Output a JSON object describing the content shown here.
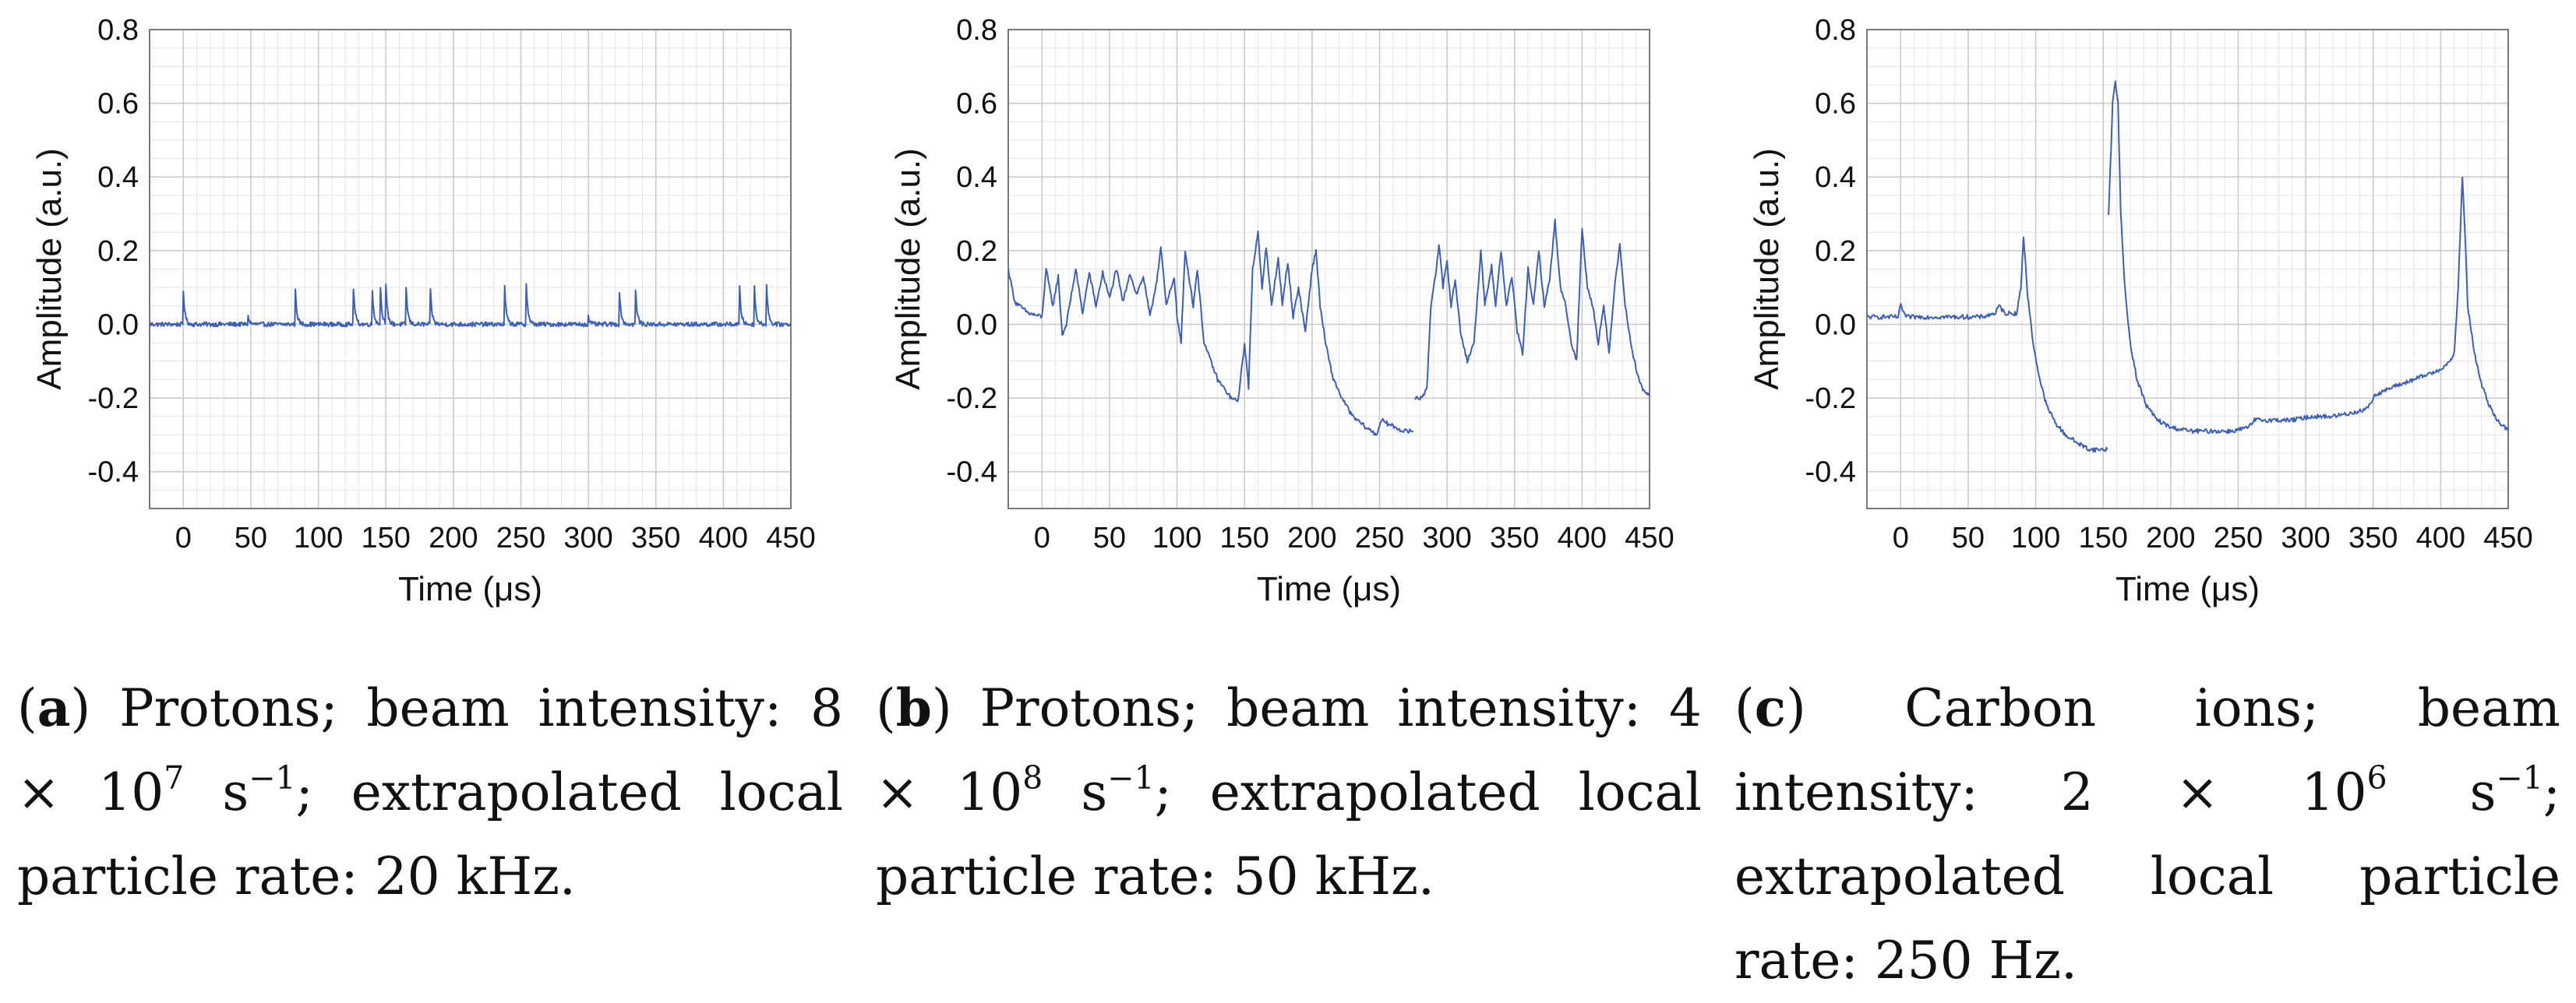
{
  "colors": {
    "series": "#3f5fb0",
    "grid": "#c8c8c8",
    "frame": "#7a7a7a",
    "text": "#111111"
  },
  "chart_data": [
    {
      "type": "line",
      "panel_label": "a",
      "xlabel": "Time (μs)",
      "ylabel": "Amplitude (a.u.)",
      "xlim": [
        -25,
        450
      ],
      "ylim": [
        -0.5,
        0.8
      ],
      "xticks": [
        0,
        50,
        100,
        150,
        200,
        250,
        300,
        350,
        400,
        450
      ],
      "xtick_labels": [
        "0",
        "50",
        "100",
        "150",
        "200",
        "250",
        "300",
        "350",
        "400",
        "450"
      ],
      "yticks": [
        -0.4,
        -0.2,
        0.0,
        0.2,
        0.4,
        0.6,
        0.8
      ],
      "ytick_labels": [
        "-0.4",
        "-0.2",
        "0.0",
        "0.2",
        "0.4",
        "0.6",
        "0.8"
      ],
      "grid": true,
      "baseline": 0.0,
      "segments": [],
      "peaks": [
        {
          "t": 0,
          "a": 0.09
        },
        {
          "t": 48,
          "a": 0.02
        },
        {
          "t": 83,
          "a": 0.09
        },
        {
          "t": 126,
          "a": 0.1
        },
        {
          "t": 140,
          "a": 0.09
        },
        {
          "t": 146,
          "a": 0.1
        },
        {
          "t": 150,
          "a": 0.1
        },
        {
          "t": 165,
          "a": 0.1
        },
        {
          "t": 183,
          "a": 0.09
        },
        {
          "t": 238,
          "a": 0.1
        },
        {
          "t": 254,
          "a": 0.11
        },
        {
          "t": 300,
          "a": 0.02
        },
        {
          "t": 323,
          "a": 0.09
        },
        {
          "t": 335,
          "a": 0.09
        },
        {
          "t": 412,
          "a": 0.1
        },
        {
          "t": 423,
          "a": 0.1
        },
        {
          "t": 432,
          "a": 0.11
        }
      ],
      "caption": {
        "label": "a",
        "line1": "Protons; beam intensity:",
        "l2_mant": "8 × 10",
        "l2_exp": "7",
        "l2_unit": " s",
        "l2_uexp": "−1",
        "l2_rest": "; extrapolated local",
        "line3": "particle rate: 20 kHz."
      }
    },
    {
      "type": "line",
      "panel_label": "b",
      "xlabel": "Time (μs)",
      "ylabel": "Amplitude (a.u.)",
      "xlim": [
        -25,
        450
      ],
      "ylim": [
        -0.5,
        0.8
      ],
      "xticks": [
        0,
        50,
        100,
        150,
        200,
        250,
        300,
        350,
        400,
        450
      ],
      "xtick_labels": [
        "0",
        "50",
        "100",
        "150",
        "200",
        "250",
        "300",
        "350",
        "400",
        "450"
      ],
      "yticks": [
        -0.4,
        -0.2,
        0.0,
        0.2,
        0.4,
        0.6,
        0.8
      ],
      "ytick_labels": [
        "-0.4",
        "-0.2",
        "0.0",
        "0.2",
        "0.4",
        "0.6",
        "0.8"
      ],
      "grid": true,
      "segments": [
        [
          [
            -25,
            0.15
          ],
          [
            -20,
            0.06
          ],
          [
            -10,
            0.03
          ],
          [
            0,
            0.02
          ],
          [
            3,
            0.15
          ],
          [
            8,
            0.05
          ],
          [
            12,
            0.13
          ],
          [
            15,
            -0.03
          ],
          [
            18,
            0.0
          ],
          [
            25,
            0.15
          ],
          [
            30,
            0.03
          ],
          [
            35,
            0.14
          ],
          [
            40,
            0.05
          ],
          [
            45,
            0.14
          ],
          [
            50,
            0.07
          ],
          [
            55,
            0.15
          ],
          [
            60,
            0.06
          ],
          [
            65,
            0.14
          ],
          [
            70,
            0.08
          ],
          [
            75,
            0.13
          ],
          [
            80,
            0.02
          ],
          [
            85,
            0.12
          ],
          [
            88,
            0.21
          ],
          [
            92,
            0.05
          ],
          [
            98,
            0.13
          ],
          [
            100,
            0.02
          ],
          [
            103,
            -0.05
          ],
          [
            106,
            0.2
          ],
          [
            112,
            0.05
          ],
          [
            115,
            0.15
          ],
          [
            120,
            -0.05
          ],
          [
            125,
            -0.1
          ],
          [
            130,
            -0.15
          ],
          [
            140,
            -0.2
          ],
          [
            145,
            -0.21
          ],
          [
            148,
            -0.12
          ],
          [
            150,
            -0.05
          ],
          [
            153,
            -0.17
          ],
          [
            156,
            0.15
          ],
          [
            160,
            0.25
          ],
          [
            163,
            0.1
          ],
          [
            166,
            0.21
          ],
          [
            170,
            0.05
          ],
          [
            175,
            0.18
          ],
          [
            178,
            0.05
          ],
          [
            182,
            0.17
          ],
          [
            186,
            0.02
          ],
          [
            190,
            0.1
          ],
          [
            195,
            -0.02
          ],
          [
            200,
            0.15
          ],
          [
            203,
            0.2
          ],
          [
            206,
            0.05
          ],
          [
            210,
            -0.05
          ],
          [
            215,
            -0.14
          ],
          [
            222,
            -0.2
          ],
          [
            230,
            -0.25
          ],
          [
            240,
            -0.28
          ],
          [
            248,
            -0.3
          ],
          [
            251,
            -0.26
          ],
          [
            256,
            -0.27
          ],
          [
            262,
            -0.28
          ],
          [
            268,
            -0.29
          ],
          [
            275,
            -0.29
          ]
        ],
        [
          [
            276,
            -0.2
          ],
          [
            280,
            -0.2
          ],
          [
            285,
            -0.18
          ],
          [
            288,
            0.05
          ],
          [
            292,
            0.15
          ],
          [
            294,
            0.22
          ],
          [
            297,
            0.1
          ],
          [
            300,
            0.17
          ],
          [
            303,
            0.05
          ],
          [
            306,
            0.12
          ],
          [
            310,
            -0.02
          ],
          [
            315,
            -0.1
          ],
          [
            320,
            -0.05
          ],
          [
            325,
            0.2
          ],
          [
            328,
            0.05
          ],
          [
            333,
            0.16
          ],
          [
            336,
            0.05
          ],
          [
            340,
            0.2
          ],
          [
            344,
            0.05
          ],
          [
            348,
            0.13
          ],
          [
            352,
            -0.02
          ],
          [
            356,
            -0.08
          ],
          [
            360,
            0.15
          ],
          [
            364,
            0.05
          ],
          [
            368,
            0.2
          ],
          [
            372,
            0.05
          ],
          [
            376,
            0.12
          ],
          [
            380,
            0.28
          ],
          [
            384,
            0.1
          ],
          [
            388,
            0.05
          ],
          [
            392,
            -0.05
          ],
          [
            396,
            -0.1
          ],
          [
            400,
            0.26
          ],
          [
            404,
            0.1
          ],
          [
            408,
            0.05
          ],
          [
            412,
            -0.05
          ],
          [
            416,
            0.05
          ],
          [
            420,
            -0.08
          ],
          [
            424,
            0.1
          ],
          [
            428,
            0.22
          ],
          [
            432,
            0.05
          ],
          [
            436,
            -0.05
          ],
          [
            440,
            -0.12
          ],
          [
            445,
            -0.18
          ],
          [
            450,
            -0.19
          ]
        ]
      ],
      "peaks": [],
      "caption": {
        "label": "b",
        "line1": "Protons; beam intensity:",
        "l2_mant": "4 × 10",
        "l2_exp": "8",
        "l2_unit": " s",
        "l2_uexp": "−1",
        "l2_rest": "; extrapolated local",
        "line3": "particle rate: 50 kHz."
      }
    },
    {
      "type": "line",
      "panel_label": "c",
      "xlabel": "Time (μs)",
      "ylabel": "Amplitude (a.u.)",
      "xlim": [
        -25,
        450
      ],
      "ylim": [
        -0.5,
        0.8
      ],
      "xticks": [
        0,
        50,
        100,
        150,
        200,
        250,
        300,
        350,
        400,
        450
      ],
      "xtick_labels": [
        "0",
        "50",
        "100",
        "150",
        "200",
        "250",
        "300",
        "350",
        "400",
        "450"
      ],
      "yticks": [
        -0.4,
        -0.2,
        0.0,
        0.2,
        0.4,
        0.6,
        0.8
      ],
      "ytick_labels": [
        "-0.4",
        "-0.2",
        "0.0",
        "0.2",
        "0.4",
        "0.6",
        "0.8"
      ],
      "grid": true,
      "segments": [
        [
          [
            -25,
            0.02
          ],
          [
            -10,
            0.02
          ],
          [
            -2,
            0.02
          ],
          [
            0,
            0.05
          ],
          [
            4,
            0.02
          ],
          [
            20,
            0.02
          ],
          [
            40,
            0.02
          ],
          [
            60,
            0.02
          ],
          [
            70,
            0.03
          ],
          [
            73,
            0.05
          ],
          [
            77,
            0.03
          ],
          [
            86,
            0.03
          ],
          [
            89,
            0.1
          ],
          [
            91,
            0.24
          ],
          [
            94,
            0.08
          ],
          [
            98,
            -0.05
          ],
          [
            103,
            -0.15
          ],
          [
            108,
            -0.22
          ],
          [
            115,
            -0.27
          ],
          [
            122,
            -0.3
          ],
          [
            130,
            -0.32
          ],
          [
            140,
            -0.34
          ],
          [
            150,
            -0.34
          ],
          [
            153,
            -0.34
          ]
        ],
        [
          [
            154,
            0.3
          ],
          [
            157,
            0.6
          ],
          [
            159,
            0.66
          ],
          [
            161,
            0.6
          ],
          [
            163,
            0.3
          ],
          [
            166,
            0.1
          ],
          [
            170,
            -0.05
          ],
          [
            175,
            -0.15
          ],
          [
            182,
            -0.22
          ],
          [
            190,
            -0.26
          ],
          [
            200,
            -0.28
          ],
          [
            215,
            -0.29
          ],
          [
            230,
            -0.29
          ],
          [
            245,
            -0.29
          ],
          [
            258,
            -0.28
          ],
          [
            262,
            -0.26
          ],
          [
            275,
            -0.26
          ],
          [
            290,
            -0.26
          ],
          [
            305,
            -0.25
          ],
          [
            320,
            -0.25
          ],
          [
            335,
            -0.24
          ],
          [
            345,
            -0.23
          ],
          [
            352,
            -0.19
          ],
          [
            365,
            -0.17
          ],
          [
            380,
            -0.15
          ],
          [
            395,
            -0.13
          ],
          [
            405,
            -0.11
          ],
          [
            410,
            -0.08
          ],
          [
            413,
            0.1
          ],
          [
            415,
            0.3
          ],
          [
            416,
            0.4
          ],
          [
            418,
            0.25
          ],
          [
            420,
            0.05
          ],
          [
            425,
            -0.08
          ],
          [
            430,
            -0.16
          ],
          [
            436,
            -0.22
          ],
          [
            442,
            -0.26
          ],
          [
            450,
            -0.29
          ]
        ]
      ],
      "peaks": [],
      "caption": {
        "label": "c",
        "line1": "Carbon ions; beam intensity:",
        "l2_mant": "2 × 10",
        "l2_exp": "6",
        "l2_unit": " s",
        "l2_uexp": "−1",
        "l2_rest": "; extrapolated local",
        "line3": "particle rate: 250 Hz."
      }
    }
  ]
}
